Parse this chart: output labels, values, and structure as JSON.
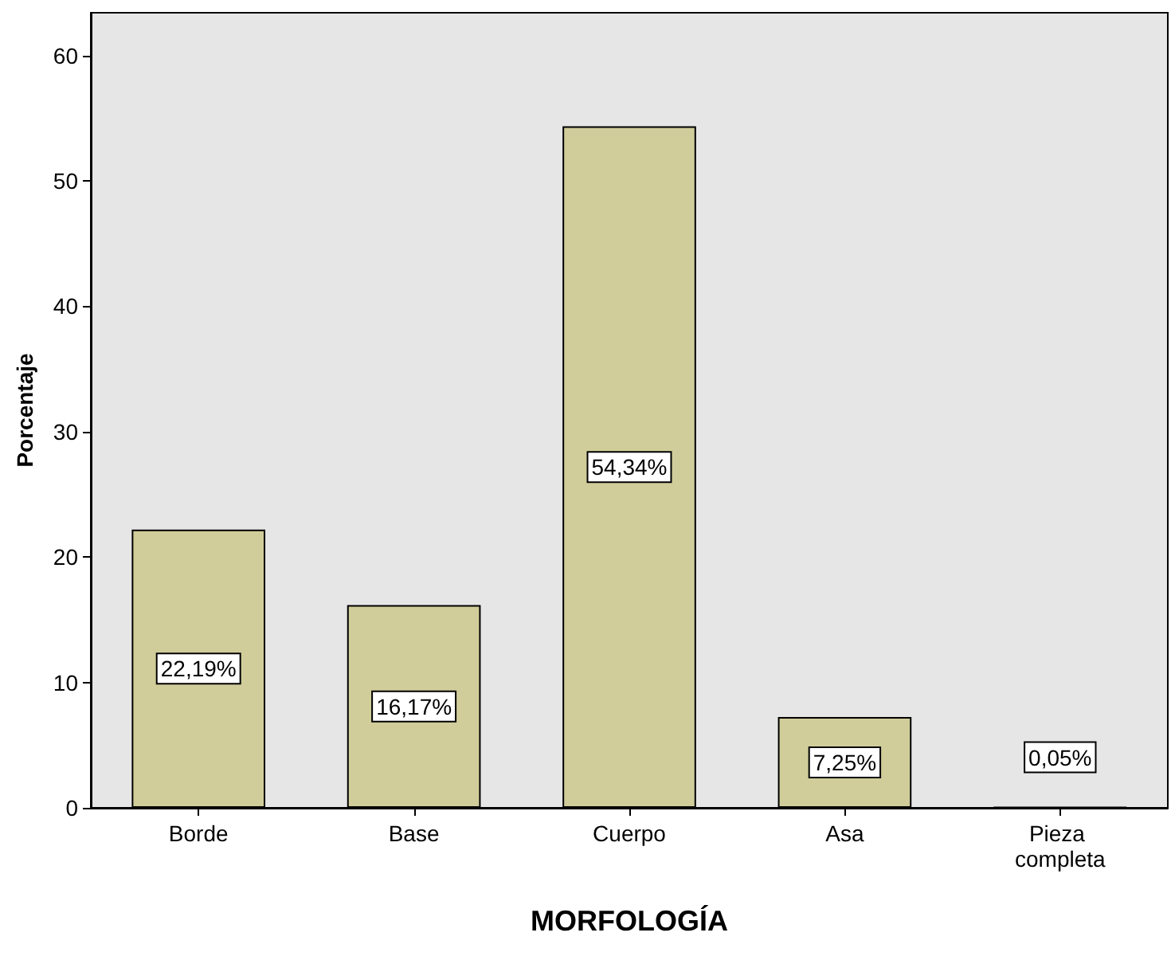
{
  "chart_data": {
    "type": "bar",
    "xlabel": "MORFOLOGÍA",
    "ylabel": "Porcentaje",
    "categories": [
      "Borde",
      "Base",
      "Cuerpo",
      "Asa",
      "Pieza completa"
    ],
    "values": [
      22.19,
      16.17,
      54.34,
      7.25,
      0.05
    ],
    "value_labels": [
      "22,19%",
      "16,17%",
      "54,34%",
      "7,25%",
      "0,05%"
    ],
    "color": "#d1cd9a",
    "ylim": [
      0,
      63.4
    ],
    "yticks": [
      0,
      10,
      20,
      30,
      40,
      50,
      60
    ],
    "grid": false
  }
}
